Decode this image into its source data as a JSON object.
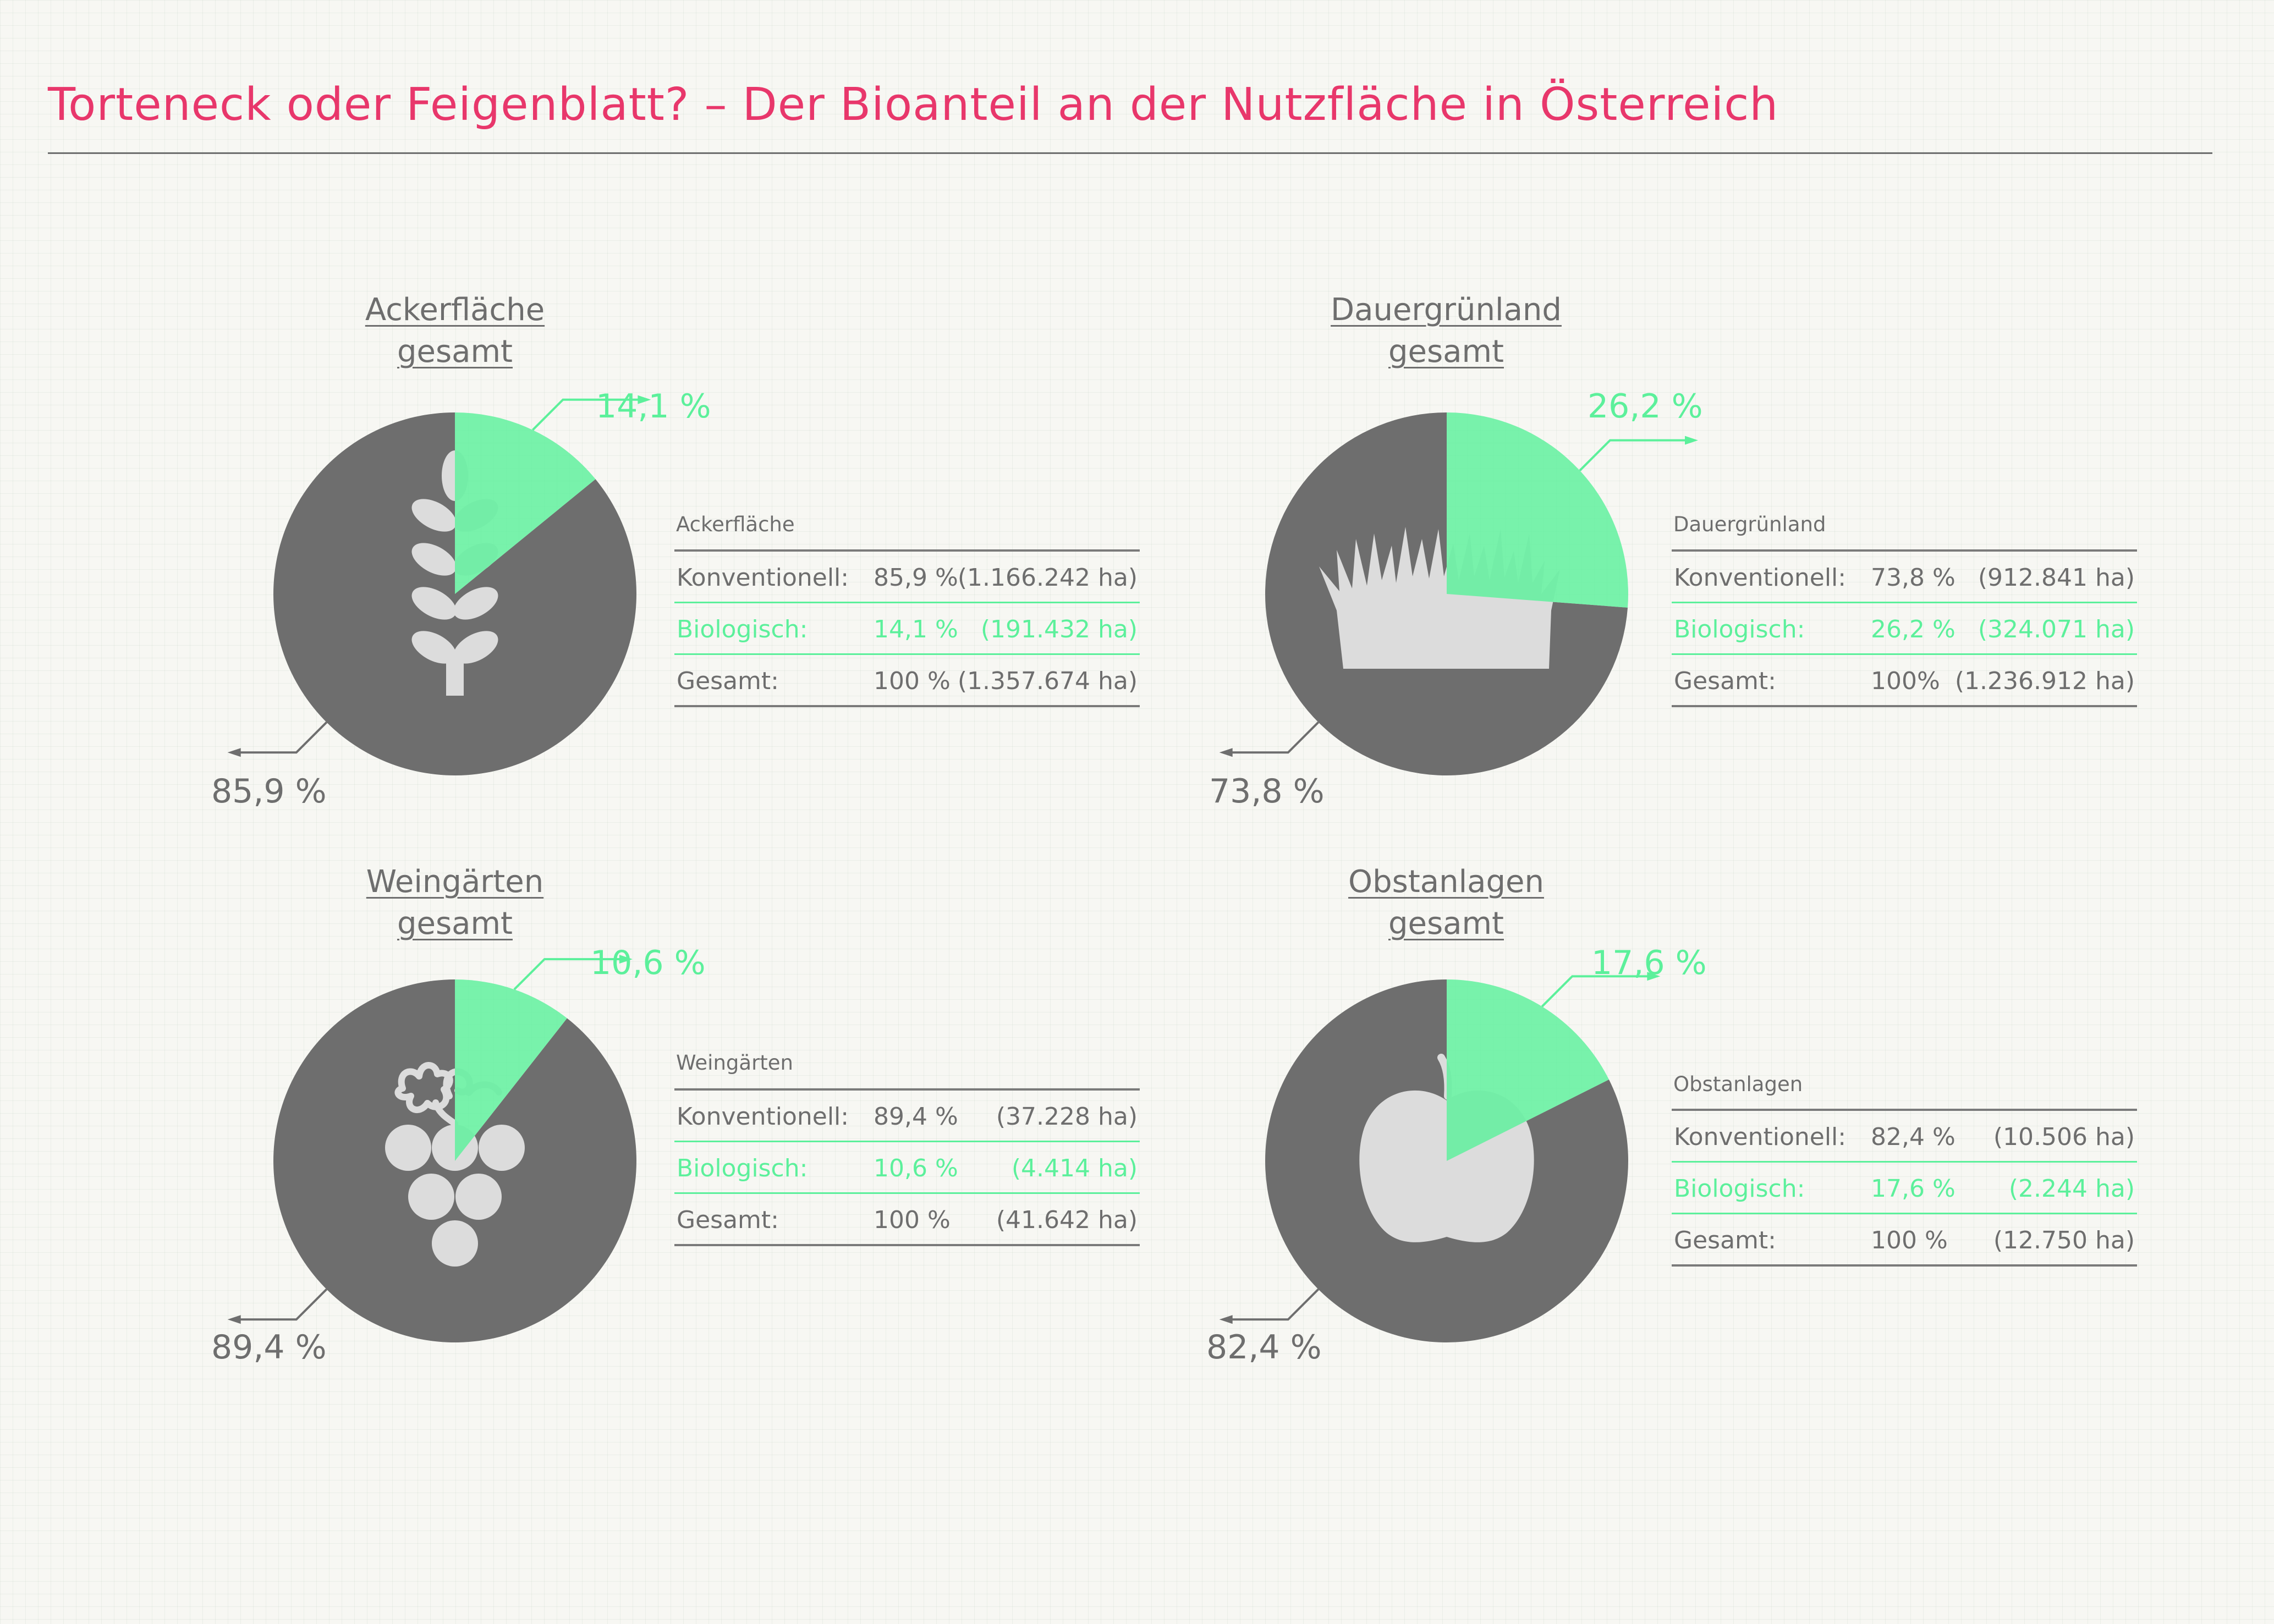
{
  "title": "Torteneck oder Feigenblatt? – Der Bioanteil an der Nutzfläche in Österreich",
  "colors": {
    "title": "#e8376b",
    "conventional": "#6e6e6e",
    "organic": "#5cf09b",
    "icon": "#dcdcdc",
    "background": "#f7f7f3"
  },
  "panels": [
    {
      "heading": [
        "Ackerfläche",
        "gesamt"
      ],
      "icon": "wheat-icon",
      "table_caption": "Ackerfläche",
      "rows": [
        {
          "label": "Konventionell:",
          "pct": "85,9 %",
          "ha": "(1.166.242 ha)"
        },
        {
          "label": "Biologisch:",
          "pct": "14,1 %",
          "ha": "(191.432 ha)"
        },
        {
          "label": "Gesamt:",
          "pct": "100 %",
          "ha": "(1.357.674 ha)"
        }
      ],
      "bio_label": "14,1 %",
      "conv_label": "85,9 %"
    },
    {
      "heading": [
        "Dauergrünland",
        "gesamt"
      ],
      "icon": "grass-icon",
      "table_caption": "Dauergrünland",
      "rows": [
        {
          "label": "Konventionell:",
          "pct": "73,8 %",
          "ha": "(912.841 ha)"
        },
        {
          "label": "Biologisch:",
          "pct": "26,2 %",
          "ha": "(324.071 ha)"
        },
        {
          "label": "Gesamt:",
          "pct": "100%",
          "ha": "(1.236.912 ha)"
        }
      ],
      "bio_label": "26,2 %",
      "conv_label": "73,8 %"
    },
    {
      "heading": [
        "Weingärten",
        "gesamt"
      ],
      "icon": "grapes-icon",
      "table_caption": "Weingärten",
      "rows": [
        {
          "label": "Konventionell:",
          "pct": "89,4 %",
          "ha": "(37.228 ha)"
        },
        {
          "label": "Biologisch:",
          "pct": "10,6 %",
          "ha": "(4.414 ha)"
        },
        {
          "label": "Gesamt:",
          "pct": "100 %",
          "ha": "(41.642 ha)"
        }
      ],
      "bio_label": "10,6 %",
      "conv_label": "89,4 %"
    },
    {
      "heading": [
        "Obstanlagen",
        "gesamt"
      ],
      "icon": "apple-icon",
      "table_caption": "Obstanlagen",
      "rows": [
        {
          "label": "Konventionell:",
          "pct": "82,4 %",
          "ha": "(10.506 ha)"
        },
        {
          "label": "Biologisch:",
          "pct": "17,6 %",
          "ha": "(2.244 ha)"
        },
        {
          "label": "Gesamt:",
          "pct": "100 %",
          "ha": "(12.750 ha)"
        }
      ],
      "bio_label": "17,6 %",
      "conv_label": "82,4 %"
    }
  ],
  "chart_data": [
    {
      "type": "pie",
      "title": "Ackerfläche gesamt",
      "categories": [
        "Konventionell",
        "Biologisch"
      ],
      "values": [
        85.9,
        14.1
      ],
      "hectares": [
        1166242,
        191432
      ],
      "total_hectares": 1357674
    },
    {
      "type": "pie",
      "title": "Dauergrünland gesamt",
      "categories": [
        "Konventionell",
        "Biologisch"
      ],
      "values": [
        73.8,
        26.2
      ],
      "hectares": [
        912841,
        324071
      ],
      "total_hectares": 1236912
    },
    {
      "type": "pie",
      "title": "Weingärten gesamt",
      "categories": [
        "Konventionell",
        "Biologisch"
      ],
      "values": [
        89.4,
        10.6
      ],
      "hectares": [
        37228,
        4414
      ],
      "total_hectares": 41642
    },
    {
      "type": "pie",
      "title": "Obstanlagen gesamt",
      "categories": [
        "Konventionell",
        "Biologisch"
      ],
      "values": [
        82.4,
        17.6
      ],
      "hectares": [
        10506,
        2244
      ],
      "total_hectares": 12750
    }
  ]
}
